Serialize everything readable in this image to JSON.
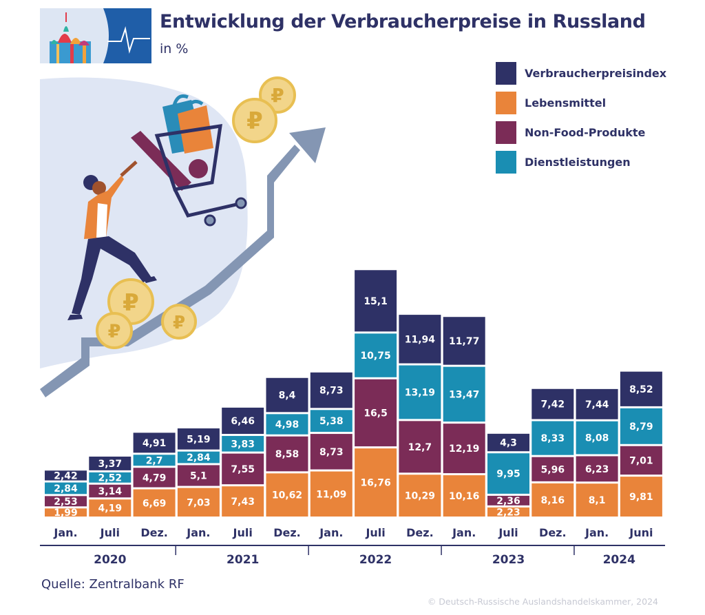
{
  "header": {
    "title": "Entwicklung der Verbraucherpreise in Russland",
    "subtitle": "in %"
  },
  "footer": {
    "source": "Quelle: Zentralbank RF",
    "copyright": "© Deutsch-Russische Auslandshandelskammer, 2024"
  },
  "colors": {
    "Verbraucherpreisindex": "#2e3166",
    "Lebensmittel": "#e9843a",
    "Non-Food-Produkte": "#7b2c57",
    "Dienstleistungen": "#1a8eb3",
    "axis": "#2e3166"
  },
  "icons": [
    "moscow-cathedral-icon",
    "heartbeat-line-icon",
    "shopper-woman-icon",
    "shopping-cart-icon",
    "ruble-coin-icon",
    "rising-arrow-icon"
  ],
  "chart_data": {
    "type": "bar",
    "stacked": true,
    "categories": [
      "Jan.",
      "Juli",
      "Dez.",
      "Jan.",
      "Juli",
      "Dez.",
      "Jan.",
      "Juli",
      "Dez.",
      "Jan.",
      "Juli",
      "Dez.",
      "Jan.",
      "Juni"
    ],
    "years": [
      {
        "label": "2020",
        "count": 3
      },
      {
        "label": "2021",
        "count": 3
      },
      {
        "label": "2022",
        "count": 3
      },
      {
        "label": "2023",
        "count": 3
      },
      {
        "label": "2024",
        "count": 2
      }
    ],
    "series": [
      {
        "name": "Lebensmittel",
        "values": [
          1.99,
          4.19,
          6.69,
          7.03,
          7.43,
          10.62,
          11.09,
          16.76,
          10.29,
          10.16,
          2.23,
          8.16,
          8.1,
          9.81
        ]
      },
      {
        "name": "Non-Food-Produkte",
        "values": [
          2.53,
          3.14,
          4.79,
          5.1,
          7.55,
          8.58,
          8.73,
          16.5,
          12.7,
          12.19,
          2.36,
          5.96,
          6.23,
          7.01
        ]
      },
      {
        "name": "Dienstleistungen",
        "values": [
          2.84,
          2.52,
          2.7,
          2.84,
          3.83,
          4.98,
          5.38,
          10.75,
          13.19,
          13.47,
          9.95,
          8.33,
          8.08,
          8.79
        ]
      },
      {
        "name": "Verbraucherpreisindex",
        "values": [
          2.42,
          3.37,
          4.91,
          5.19,
          6.46,
          8.4,
          8.73,
          15.1,
          11.94,
          11.77,
          4.3,
          7.42,
          7.44,
          8.52
        ]
      }
    ],
    "legend_order": [
      "Verbraucherpreisindex",
      "Lebensmittel",
      "Non-Food-Produkte",
      "Dienstleistungen"
    ],
    "legend_position": "top-right",
    "grid": false
  }
}
